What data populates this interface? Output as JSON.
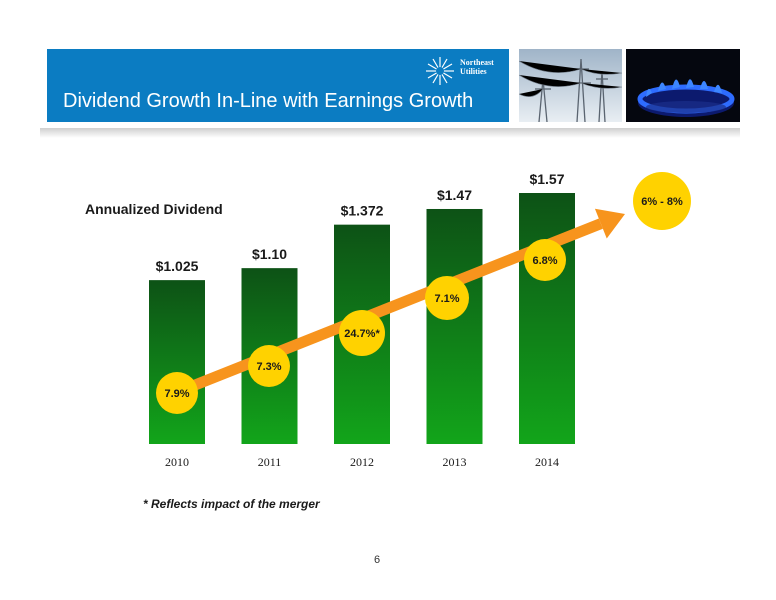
{
  "header": {
    "title": "Dividend Growth In-Line with Earnings Growth",
    "brand_line1": "Northeast",
    "brand_line2": "Utilities",
    "band_color": "#0b7cc2"
  },
  "footnote": "* Reflects impact of the merger",
  "page_number": "6",
  "chart_data": {
    "type": "bar",
    "title": "Annualized Dividend",
    "categories": [
      "2010",
      "2011",
      "2012",
      "2013",
      "2014"
    ],
    "values": [
      1.025,
      1.1,
      1.372,
      1.47,
      1.57
    ],
    "value_labels": [
      "$1.025",
      "$1.10",
      "$1.372",
      "$1.47",
      "$1.57"
    ],
    "growth_labels": [
      "7.9%",
      "7.3%",
      "24.7%*",
      "7.1%",
      "6.8%"
    ],
    "target_label": "6% - 8%",
    "ylim": [
      0,
      1.57
    ],
    "grid": false,
    "colors": {
      "bar_top": "#0d5216",
      "bar_bottom": "#12a51a",
      "arrow": "#f7941d",
      "badge": "#ffd200"
    }
  }
}
